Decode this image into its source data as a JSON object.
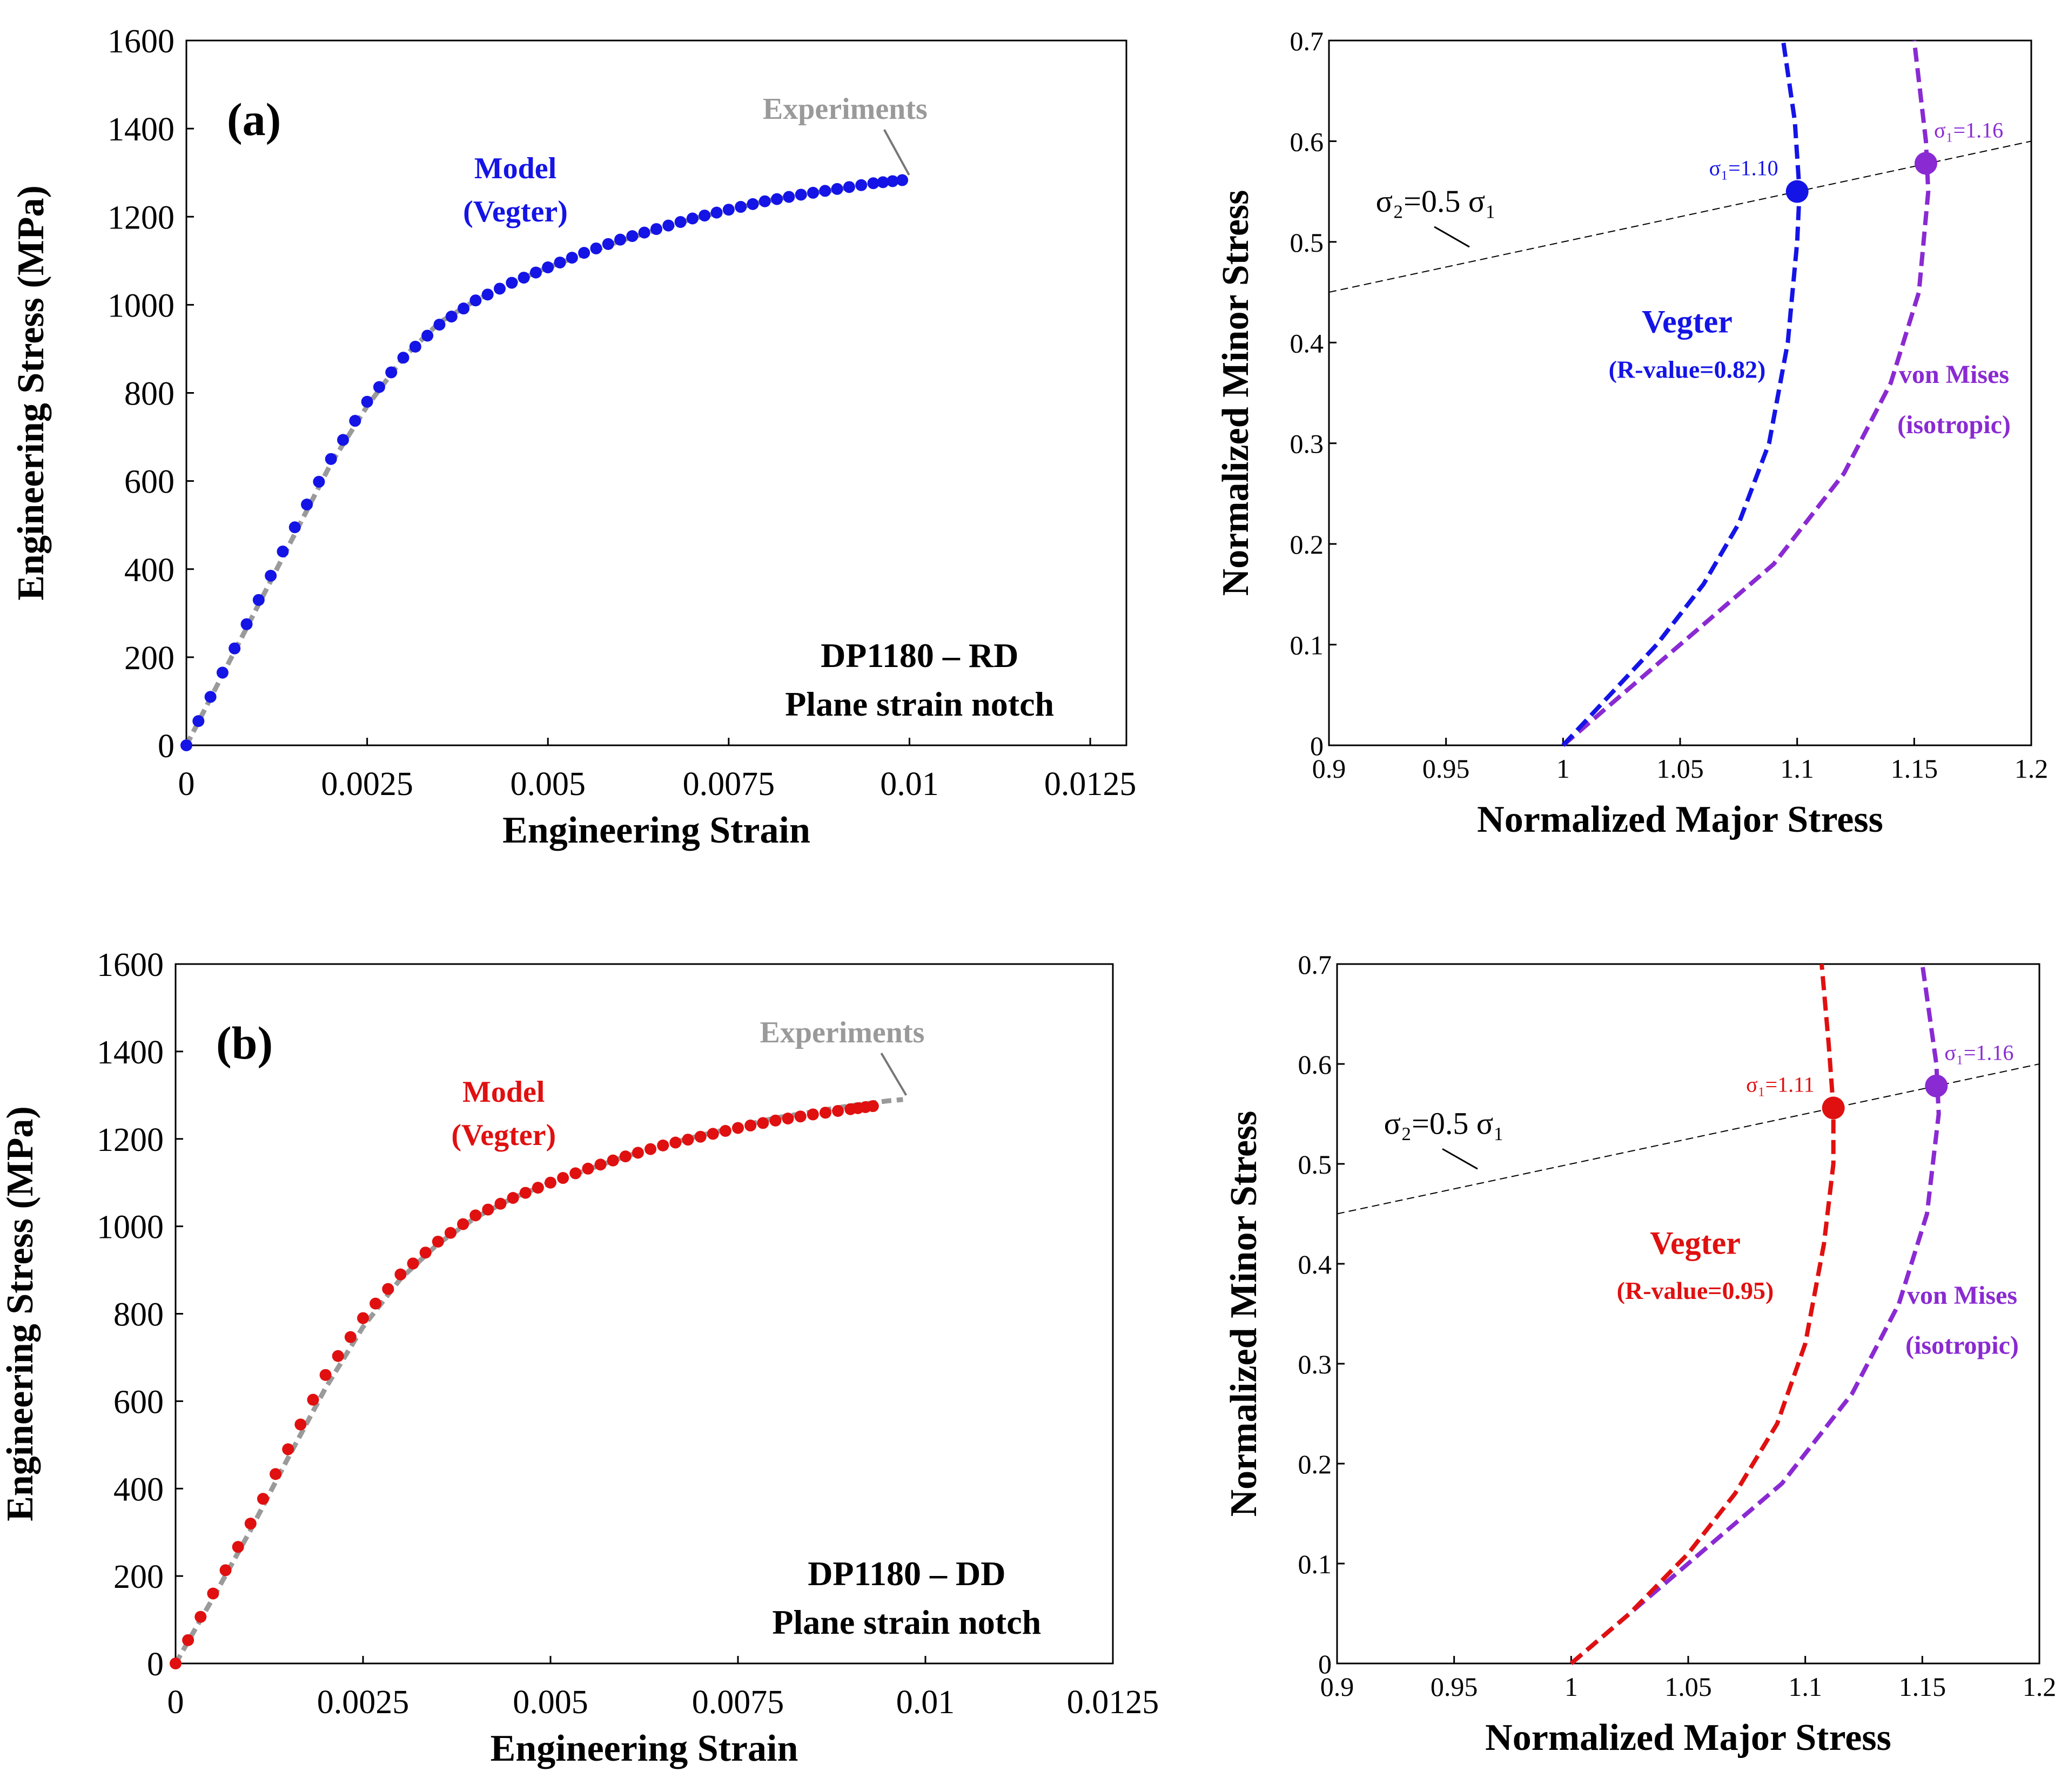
{
  "chart_data": [
    {
      "id": "a-left",
      "type": "line",
      "panel_label": "(a)",
      "xlabel": "Engineering Strain",
      "ylabel": "Engineering Stress (MPa)",
      "xlim": [
        0,
        0.013
      ],
      "ylim": [
        0,
        1600
      ],
      "xticks": [
        0,
        0.0025,
        0.005,
        0.0075,
        0.01,
        0.0125
      ],
      "xtick_labels": [
        "0",
        "0.0025",
        "0.005",
        "0.0075",
        "0.01",
        "0.0125"
      ],
      "yticks": [
        0,
        200,
        400,
        600,
        800,
        1000,
        1200,
        1400,
        1600
      ],
      "ytick_labels": [
        "0",
        "200",
        "400",
        "600",
        "800",
        "1000",
        "1200",
        "1400",
        "1600"
      ],
      "note_line1": "DP1180 – RD",
      "note_line2": "Plane strain notch",
      "experiments_label": "Experiments",
      "model_label_line1": "Model",
      "model_label_line2": "(Vegter)",
      "model_color": "#1414e6",
      "experiments_color": "#9a9a9a",
      "series": [
        {
          "name": "Experiments",
          "x": [
            0,
            0.0005,
            0.001,
            0.0015,
            0.002,
            0.0025,
            0.003,
            0.0035,
            0.004,
            0.0045,
            0.005,
            0.0055,
            0.006,
            0.0065,
            0.007,
            0.0075,
            0.008,
            0.0085,
            0.009,
            0.0095,
            0.00995
          ],
          "values": [
            0,
            160,
            320,
            480,
            640,
            770,
            880,
            960,
            1010,
            1050,
            1085,
            1115,
            1145,
            1170,
            1195,
            1215,
            1235,
            1250,
            1262,
            1275,
            1285
          ]
        },
        {
          "name": "Model (Vegter)",
          "x": [
            0,
            0.0005,
            0.001,
            0.0015,
            0.002,
            0.0025,
            0.003,
            0.0035,
            0.004,
            0.0045,
            0.005,
            0.0055,
            0.006,
            0.0065,
            0.007,
            0.0075,
            0.008,
            0.0085,
            0.009,
            0.0095,
            0.0099
          ],
          "values": [
            0,
            165,
            330,
            495,
            650,
            780,
            880,
            955,
            1010,
            1050,
            1085,
            1118,
            1148,
            1172,
            1196,
            1216,
            1235,
            1250,
            1263,
            1276,
            1283
          ]
        }
      ]
    },
    {
      "id": "a-right",
      "type": "line",
      "xlabel": "Normalized Major Stress",
      "ylabel": "Normalized Minor Stress",
      "xlim": [
        0.9,
        1.2
      ],
      "ylim": [
        0,
        0.7
      ],
      "xticks": [
        0.9,
        0.95,
        1,
        1.05,
        1.1,
        1.15,
        1.2
      ],
      "xtick_labels": [
        "0.9",
        "0.95",
        "1",
        "1.05",
        "1.1",
        "1.15",
        "1.2"
      ],
      "yticks": [
        0,
        0.1,
        0.2,
        0.3,
        0.4,
        0.5,
        0.6,
        0.7
      ],
      "ytick_labels": [
        "0",
        "0.1",
        "0.2",
        "0.3",
        "0.4",
        "0.5",
        "0.6",
        "0.7"
      ],
      "ratio_label": "σ₂=0.5 σ₁",
      "vegter_label": "Vegter",
      "vegter_r_label": "(R-value=0.82)",
      "mises_label_line1": "von Mises",
      "mises_label_line2": "(isotropic)",
      "vegter_color": "#1414e6",
      "mises_color": "#8a2ad2",
      "vegter_point_label": "σ₁=1.10",
      "mises_point_label": "σ₁=1.16",
      "vegter_point": [
        1.1,
        0.55
      ],
      "mises_point": [
        1.155,
        0.578
      ],
      "ratio_line": {
        "x": [
          0.9,
          1.2
        ],
        "y": [
          0.45,
          0.6
        ]
      },
      "series": [
        {
          "name": "Vegter (R-value=0.82)",
          "x": [
            1.0,
            1.02,
            1.04,
            1.06,
            1.075,
            1.088,
            1.096,
            1.1,
            1.101,
            1.099,
            1.094
          ],
          "values": [
            0,
            0.05,
            0.1,
            0.16,
            0.22,
            0.3,
            0.4,
            0.5,
            0.55,
            0.62,
            0.7
          ]
        },
        {
          "name": "von Mises (isotropic)",
          "x": [
            1.0,
            1.03,
            1.06,
            1.09,
            1.12,
            1.14,
            1.152,
            1.156,
            1.155,
            1.15
          ],
          "values": [
            0,
            0.06,
            0.12,
            0.18,
            0.27,
            0.36,
            0.45,
            0.55,
            0.6,
            0.7
          ]
        }
      ]
    },
    {
      "id": "b-left",
      "type": "line",
      "panel_label": "(b)",
      "xlabel": "Engineering Strain",
      "ylabel": "Engineering Stress (MPa)",
      "xlim": [
        0,
        0.0125
      ],
      "ylim": [
        0,
        1600
      ],
      "xticks": [
        0,
        0.0025,
        0.005,
        0.0075,
        0.01,
        0.0125
      ],
      "xtick_labels": [
        "0",
        "0.0025",
        "0.005",
        "0.0075",
        "0.01",
        "0.0125"
      ],
      "yticks": [
        0,
        200,
        400,
        600,
        800,
        1000,
        1200,
        1400,
        1600
      ],
      "ytick_labels": [
        "0",
        "200",
        "400",
        "600",
        "800",
        "1000",
        "1200",
        "1400",
        "1600"
      ],
      "note_line1": "DP1180 – DD",
      "note_line2": "Plane strain notch",
      "experiments_label": "Experiments",
      "model_label_line1": "Model",
      "model_label_line2": "(Vegter)",
      "model_color": "#e01010",
      "experiments_color": "#9a9a9a",
      "series": [
        {
          "name": "Experiments",
          "x": [
            0,
            0.0005,
            0.001,
            0.0015,
            0.002,
            0.0025,
            0.003,
            0.0035,
            0.004,
            0.0045,
            0.005,
            0.0055,
            0.006,
            0.0065,
            0.007,
            0.0075,
            0.008,
            0.0085,
            0.009,
            0.0095,
            0.0097
          ],
          "values": [
            0,
            150,
            305,
            470,
            630,
            770,
            880,
            960,
            1020,
            1065,
            1100,
            1130,
            1160,
            1185,
            1208,
            1228,
            1248,
            1262,
            1276,
            1287,
            1290
          ]
        },
        {
          "name": "Model (Vegter)",
          "x": [
            0,
            0.0005,
            0.001,
            0.0015,
            0.002,
            0.0025,
            0.003,
            0.0035,
            0.004,
            0.0045,
            0.005,
            0.0055,
            0.006,
            0.0065,
            0.007,
            0.0075,
            0.008,
            0.0085,
            0.009,
            0.0093
          ],
          "values": [
            0,
            160,
            320,
            490,
            660,
            790,
            890,
            965,
            1025,
            1065,
            1100,
            1132,
            1160,
            1185,
            1205,
            1225,
            1242,
            1256,
            1268,
            1275
          ]
        }
      ]
    },
    {
      "id": "b-right",
      "type": "line",
      "xlabel": "Normalized Major Stress",
      "ylabel": "Normalized Minor Stress",
      "xlim": [
        0.9,
        1.2
      ],
      "ylim": [
        0,
        0.7
      ],
      "xticks": [
        0.9,
        0.95,
        1,
        1.05,
        1.1,
        1.15,
        1.2
      ],
      "xtick_labels": [
        "0.9",
        "0.95",
        "1",
        "1.05",
        "1.1",
        "1.15",
        "1.2"
      ],
      "yticks": [
        0,
        0.1,
        0.2,
        0.3,
        0.4,
        0.5,
        0.6,
        0.7
      ],
      "ytick_labels": [
        "0",
        "0.1",
        "0.2",
        "0.3",
        "0.4",
        "0.5",
        "0.6",
        "0.7"
      ],
      "ratio_label": "σ₂=0.5 σ₁",
      "vegter_label": "Vegter",
      "vegter_r_label": "(R-value=0.95)",
      "mises_label_line1": "von Mises",
      "mises_label_line2": "(isotropic)",
      "vegter_color": "#e01010",
      "mises_color": "#8a2ad2",
      "vegter_point_label": "σ₁=1.11",
      "mises_point_label": "σ₁=1.16",
      "vegter_point": [
        1.112,
        0.556
      ],
      "mises_point": [
        1.156,
        0.578
      ],
      "ratio_line": {
        "x": [
          0.9,
          1.2
        ],
        "y": [
          0.45,
          0.6
        ]
      },
      "series": [
        {
          "name": "Vegter (R-value=0.95)",
          "x": [
            1.0,
            1.025,
            1.05,
            1.07,
            1.088,
            1.1,
            1.108,
            1.112,
            1.112,
            1.11,
            1.107
          ],
          "values": [
            0,
            0.05,
            0.11,
            0.17,
            0.24,
            0.32,
            0.42,
            0.5,
            0.556,
            0.62,
            0.7
          ]
        },
        {
          "name": "von Mises (isotropic)",
          "x": [
            1.0,
            1.03,
            1.06,
            1.09,
            1.12,
            1.14,
            1.152,
            1.157,
            1.156,
            1.15
          ],
          "values": [
            0,
            0.06,
            0.12,
            0.18,
            0.27,
            0.36,
            0.45,
            0.55,
            0.6,
            0.7
          ]
        }
      ]
    }
  ]
}
